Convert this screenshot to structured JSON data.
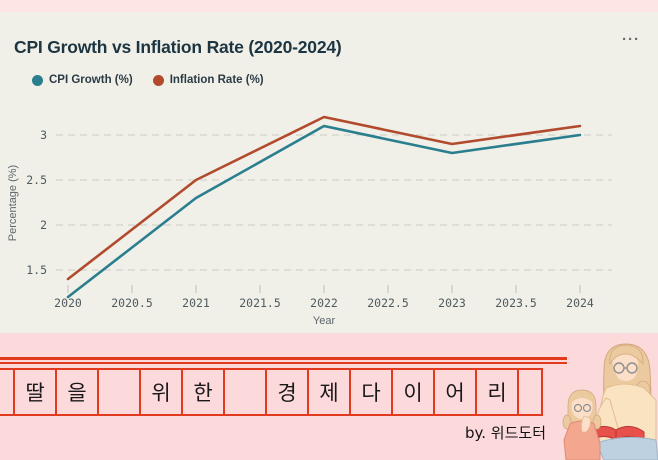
{
  "card": {
    "title": "CPI Growth vs Inflation Rate (2020-2024)",
    "menu_icon": "···"
  },
  "legend": {
    "items": [
      {
        "label": "CPI Growth (%)",
        "color": "#2b7e8e"
      },
      {
        "label": "Inflation Rate (%)",
        "color": "#b24a2d"
      }
    ]
  },
  "chart_data": {
    "type": "line",
    "title": "CPI Growth vs Inflation Rate (2020-2024)",
    "x": [
      2020,
      2021,
      2022,
      2023,
      2024
    ],
    "series": [
      {
        "name": "CPI Growth (%)",
        "color": "#2b7e8e",
        "values": [
          1.2,
          2.3,
          3.1,
          2.8,
          3.0
        ]
      },
      {
        "name": "Inflation Rate (%)",
        "color": "#b24a2d",
        "values": [
          1.4,
          2.5,
          3.2,
          2.9,
          3.1
        ]
      }
    ],
    "xlabel": "Year",
    "ylabel": "Percentage (%)",
    "xticks": [
      2020,
      2020.5,
      2021,
      2021.5,
      2022,
      2022.5,
      2023,
      2023.5,
      2024
    ],
    "yticks": [
      1.5,
      2,
      2.5,
      3
    ],
    "xlim": [
      2020,
      2024
    ],
    "ylim": [
      1.1,
      3.3
    ],
    "grid": "dashed horizontal",
    "legend_position": "top-left",
    "colors": {
      "grid": "#d8d8cf",
      "tick": "#c8c8c0",
      "background": "#f0f0e9"
    }
  },
  "banner": {
    "cells": [
      "",
      "딸",
      "을",
      "",
      "위",
      "한",
      "",
      "경",
      "제",
      "다",
      "이",
      "어",
      "리",
      ""
    ],
    "phrase": "딸을 위한 경제다이어리",
    "signature": "by. 위드도터",
    "colors": {
      "background": "#fcdadb",
      "grid_red": "#e23a1d"
    }
  }
}
